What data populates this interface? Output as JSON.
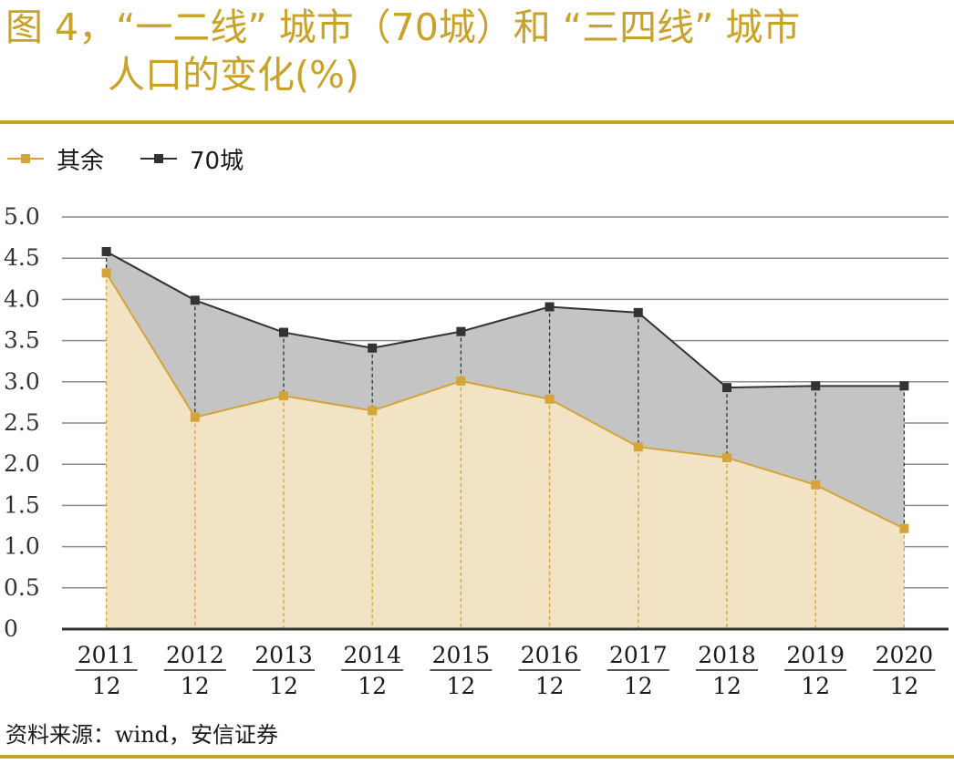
{
  "title": {
    "line1": "图 4，“一二线” 城市（70城）和 “三四线” 城市",
    "line2": "人口的变化(%)"
  },
  "source": "资料来源：wind，安信证券",
  "colors": {
    "accent": "#C9A227",
    "series_other": "#D4A437",
    "series_70": "#333333",
    "fill_other": "#F1E3C3",
    "fill_70": "#C4C4C4"
  },
  "chart_data": {
    "type": "area",
    "categories": [
      "2011\n12",
      "2012\n12",
      "2013\n12",
      "2014\n12",
      "2015\n12",
      "2016\n12",
      "2017\n12",
      "2018\n12",
      "2019\n12",
      "2020\n12"
    ],
    "series": [
      {
        "name": "其余",
        "values": [
          4.32,
          2.57,
          2.83,
          2.65,
          3.01,
          2.79,
          2.21,
          2.08,
          1.75,
          1.22
        ]
      },
      {
        "name": "70城",
        "values": [
          4.58,
          3.99,
          3.6,
          3.41,
          3.61,
          3.91,
          3.84,
          2.93,
          2.95,
          2.95
        ]
      }
    ],
    "yticks": [
      "5.0",
      "4.5",
      "4.0",
      "3.5",
      "3.0",
      "2.5",
      "2.0",
      "1.5",
      "1.0",
      "0.5",
      "0"
    ],
    "ylim": [
      0,
      5
    ],
    "grid": true,
    "legend": "top-left"
  }
}
